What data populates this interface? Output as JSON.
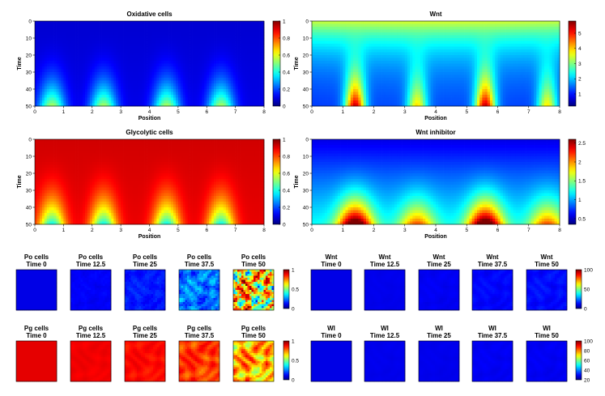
{
  "chart_data": [
    {
      "type": "heatmap",
      "title": "Oxidative cells",
      "xlabel": "Position",
      "ylabel": "Time",
      "xlim": [
        0,
        8
      ],
      "ylim": [
        0,
        50
      ],
      "xticks": [
        "0",
        "1",
        "2",
        "3",
        "4",
        "5",
        "6",
        "7",
        "8"
      ],
      "yticks": [
        "0",
        "10",
        "20",
        "30",
        "40",
        "50"
      ],
      "colorbar": {
        "range": [
          0,
          1
        ],
        "ticks": [
          "0",
          "0.2",
          "0.4",
          "0.6",
          "0.8",
          "1"
        ]
      },
      "peaks_position": [
        0.6,
        2.4,
        4.6,
        6.5
      ],
      "peak_value_at_time_50": 0.5,
      "colormap": "jet"
    },
    {
      "type": "heatmap",
      "title": "Wnt",
      "xlabel": "Position",
      "ylabel": "Time",
      "xlim": [
        0,
        8
      ],
      "ylim": [
        0,
        50
      ],
      "xticks": [
        "0",
        "1",
        "2",
        "3",
        "4",
        "5",
        "6",
        "7",
        "8"
      ],
      "yticks": [
        "0",
        "10",
        "20",
        "30",
        "40",
        "50"
      ],
      "colorbar": {
        "range": [
          0.2,
          5.8
        ],
        "ticks": [
          "1",
          "2",
          "3",
          "4",
          "5"
        ]
      },
      "peaks_position": [
        1.4,
        3.4,
        5.6,
        7.6
      ],
      "colormap": "jet"
    },
    {
      "type": "heatmap",
      "title": "Glycolytic cells",
      "xlabel": "Position",
      "ylabel": "Time",
      "xlim": [
        0,
        8
      ],
      "ylim": [
        0,
        50
      ],
      "xticks": [
        "0",
        "1",
        "2",
        "3",
        "4",
        "5",
        "6",
        "7",
        "8"
      ],
      "yticks": [
        "0",
        "10",
        "20",
        "30",
        "40",
        "50"
      ],
      "colorbar": {
        "range": [
          0,
          1
        ],
        "ticks": [
          "0",
          "0.2",
          "0.4",
          "0.6",
          "0.8",
          "1"
        ]
      },
      "dips_position": [
        0.6,
        2.4,
        4.6,
        6.5
      ],
      "colormap": "jet"
    },
    {
      "type": "heatmap",
      "title": "Wnt inhibitor",
      "xlabel": "Position",
      "ylabel": "Time",
      "xlim": [
        0,
        8
      ],
      "ylim": [
        0,
        50
      ],
      "xticks": [
        "0",
        "1",
        "2",
        "3",
        "4",
        "5",
        "6",
        "7",
        "8"
      ],
      "yticks": [
        "0",
        "10",
        "20",
        "30",
        "40",
        "50"
      ],
      "colorbar": {
        "range": [
          0.35,
          2.6
        ],
        "ticks": [
          "0.5",
          "1",
          "1.5",
          "2",
          "2.5"
        ]
      },
      "peaks_position": [
        1.4,
        3.4,
        5.6,
        7.6
      ],
      "colormap": "jet"
    },
    {
      "type": "heatmap",
      "group": "po",
      "panels": [
        {
          "title": "Po cells",
          "time": "Time 0"
        },
        {
          "title": "Po cells",
          "time": "Time 12.5"
        },
        {
          "title": "Po cells",
          "time": "Time 25"
        },
        {
          "title": "Po cells",
          "time": "Time 37.5"
        },
        {
          "title": "Po cells",
          "time": "Time 50"
        }
      ],
      "colorbar": {
        "ticks": [
          "0",
          "0.5",
          "1"
        ]
      },
      "colormap": "jet"
    },
    {
      "type": "heatmap",
      "group": "wnt2d",
      "panels": [
        {
          "title": "Wnt",
          "time": "Time 0"
        },
        {
          "title": "Wnt",
          "time": "Time 12.5"
        },
        {
          "title": "Wnt",
          "time": "Time 25"
        },
        {
          "title": "Wnt",
          "time": "Time 37.5"
        },
        {
          "title": "Wnt",
          "time": "Time 50"
        }
      ],
      "colorbar": {
        "ticks": [
          "0",
          "50",
          "100"
        ]
      },
      "colormap": "jet"
    },
    {
      "type": "heatmap",
      "group": "pg",
      "panels": [
        {
          "title": "Pg cells",
          "time": "Time 0"
        },
        {
          "title": "Pg cells",
          "time": "Time 12.5"
        },
        {
          "title": "Pg cells",
          "time": "Time 25"
        },
        {
          "title": "Pg cells",
          "time": "Time 37.5"
        },
        {
          "title": "Pg cells",
          "time": "Time 50"
        }
      ],
      "colorbar": {
        "ticks": [
          "0",
          "0.5",
          "1"
        ]
      },
      "colormap": "jet"
    },
    {
      "type": "heatmap",
      "group": "wi",
      "panels": [
        {
          "title": "WI",
          "time": "Time 0"
        },
        {
          "title": "WI",
          "time": "Time 12.5"
        },
        {
          "title": "WI",
          "time": "Time 25"
        },
        {
          "title": "WI",
          "time": "Time 37.5"
        },
        {
          "title": "WI",
          "time": "Time 50"
        }
      ],
      "colorbar": {
        "ticks": [
          "20",
          "40",
          "60",
          "80",
          "100"
        ]
      },
      "colormap": "jet"
    }
  ]
}
